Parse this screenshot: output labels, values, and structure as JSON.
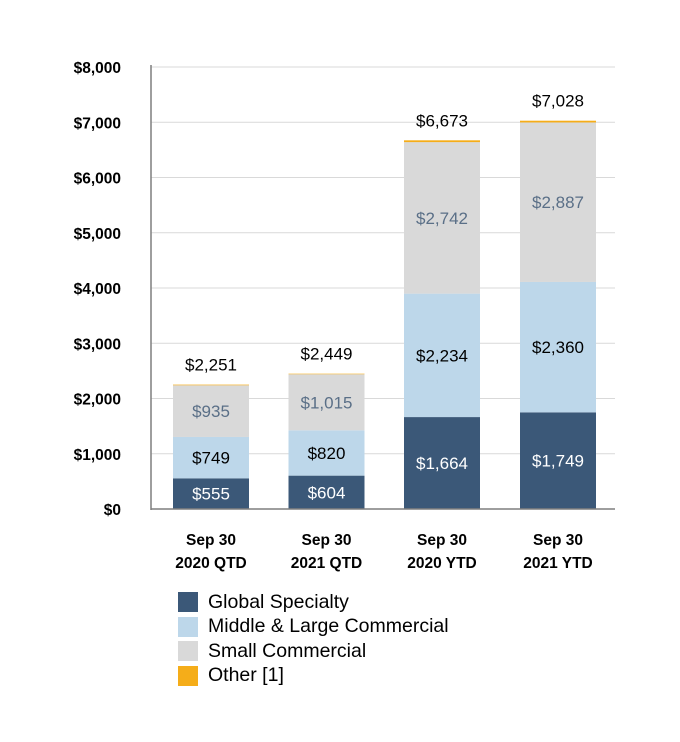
{
  "chart_data": {
    "type": "bar",
    "stacked": true,
    "categories": [
      [
        "Sep 30",
        "2020 QTD"
      ],
      [
        "Sep 30",
        "2021 QTD"
      ],
      [
        "Sep 30",
        "2020 YTD"
      ],
      [
        "Sep 30",
        "2021 YTD"
      ]
    ],
    "series": [
      {
        "name": "Global Specialty",
        "values": [
          555,
          604,
          1664,
          1749
        ],
        "labels": [
          "$555",
          "$604",
          "$1,664",
          "$1,749"
        ],
        "color": "#3b5878",
        "label_color": "#ffffff"
      },
      {
        "name": "Middle & Large Commercial",
        "values": [
          749,
          820,
          2234,
          2360
        ],
        "labels": [
          "$749",
          "$820",
          "$2,234",
          "$2,360"
        ],
        "color": "#bdd7ea",
        "label_color": "#000000"
      },
      {
        "name": "Small Commercial",
        "values": [
          935,
          1015,
          2742,
          2887
        ],
        "labels": [
          "$935",
          "$1,015",
          "$2,742",
          "$2,887"
        ],
        "color": "#d9d9d9",
        "label_color": "#5a6f87"
      },
      {
        "name": "Other [1]",
        "values": [
          12,
          10,
          33,
          32
        ],
        "color": "#f5ad19"
      }
    ],
    "totals": [
      "$2,251",
      "$2,449",
      "$6,673",
      "$7,028"
    ],
    "yticks": [
      "$0",
      "$1,000",
      "$2,000",
      "$3,000",
      "$4,000",
      "$5,000",
      "$6,000",
      "$7,000",
      "$8,000"
    ],
    "ylim": [
      0,
      8000
    ],
    "grid": true,
    "legend_position": "bottom"
  }
}
